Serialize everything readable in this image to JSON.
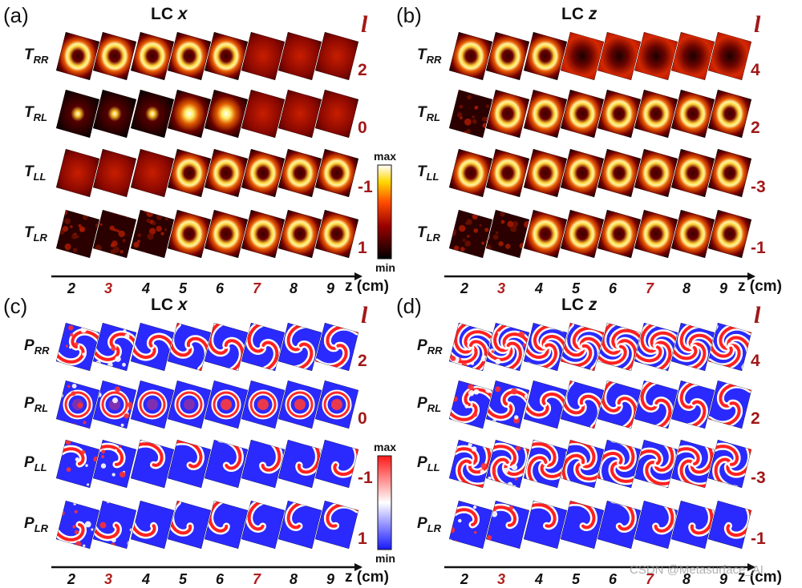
{
  "watermark": "CSDN @Metasurface_AI",
  "panels": [
    {
      "letter": "(a)",
      "title_prefix": "LC ",
      "title_var": "x",
      "kind": "T",
      "rows": [
        {
          "name": "T",
          "sub": "RR",
          "l": "2"
        },
        {
          "name": "T",
          "sub": "RL",
          "l": "0"
        },
        {
          "name": "T",
          "sub": "LL",
          "l": "-1"
        },
        {
          "name": "T",
          "sub": "LR",
          "l": "1"
        }
      ],
      "z_ticks": [
        "2",
        "3",
        "4",
        "5",
        "6",
        "7",
        "8",
        "9"
      ],
      "z_highlight": [
        "3",
        "7"
      ],
      "z_unit": "z  (cm)",
      "colorbar": {
        "max": "max",
        "min": "min"
      }
    },
    {
      "letter": "(b)",
      "title_prefix": "LC ",
      "title_var": "z",
      "kind": "T",
      "rows": [
        {
          "name": "T",
          "sub": "RR",
          "l": "4"
        },
        {
          "name": "T",
          "sub": "RL",
          "l": "2"
        },
        {
          "name": "T",
          "sub": "LL",
          "l": "-3"
        },
        {
          "name": "T",
          "sub": "LR",
          "l": "-1"
        }
      ],
      "z_ticks": [
        "2",
        "3",
        "4",
        "5",
        "6",
        "7",
        "8",
        "9"
      ],
      "z_highlight": [
        "3",
        "7"
      ],
      "z_unit": "z  (cm)"
    },
    {
      "letter": "(c)",
      "title_prefix": "LC ",
      "title_var": "x",
      "kind": "P",
      "rows": [
        {
          "name": "P",
          "sub": "RR",
          "l": "2"
        },
        {
          "name": "P",
          "sub": "RL",
          "l": "0"
        },
        {
          "name": "P",
          "sub": "LL",
          "l": "-1"
        },
        {
          "name": "P",
          "sub": "LR",
          "l": "1"
        }
      ],
      "z_ticks": [
        "2",
        "3",
        "4",
        "5",
        "6",
        "7",
        "8",
        "9"
      ],
      "z_highlight": [
        "3",
        "7"
      ],
      "z_unit": "z  (cm)",
      "colorbar": {
        "max": "max",
        "min": "min"
      }
    },
    {
      "letter": "(d)",
      "title_prefix": "LC ",
      "title_var": "z",
      "kind": "P",
      "rows": [
        {
          "name": "P",
          "sub": "RR",
          "l": "4"
        },
        {
          "name": "P",
          "sub": "RL",
          "l": "2"
        },
        {
          "name": "P",
          "sub": "LL",
          "l": "-3"
        },
        {
          "name": "P",
          "sub": "LR",
          "l": "-1"
        }
      ],
      "z_ticks": [
        "2",
        "3",
        "4",
        "5",
        "6",
        "7",
        "8",
        "9"
      ],
      "z_highlight": [
        "3",
        "7"
      ],
      "z_unit": "z  (cm)"
    }
  ],
  "l_symbol": "l",
  "colors": {
    "accent_red": "#a11818",
    "axis": "#111111"
  }
}
